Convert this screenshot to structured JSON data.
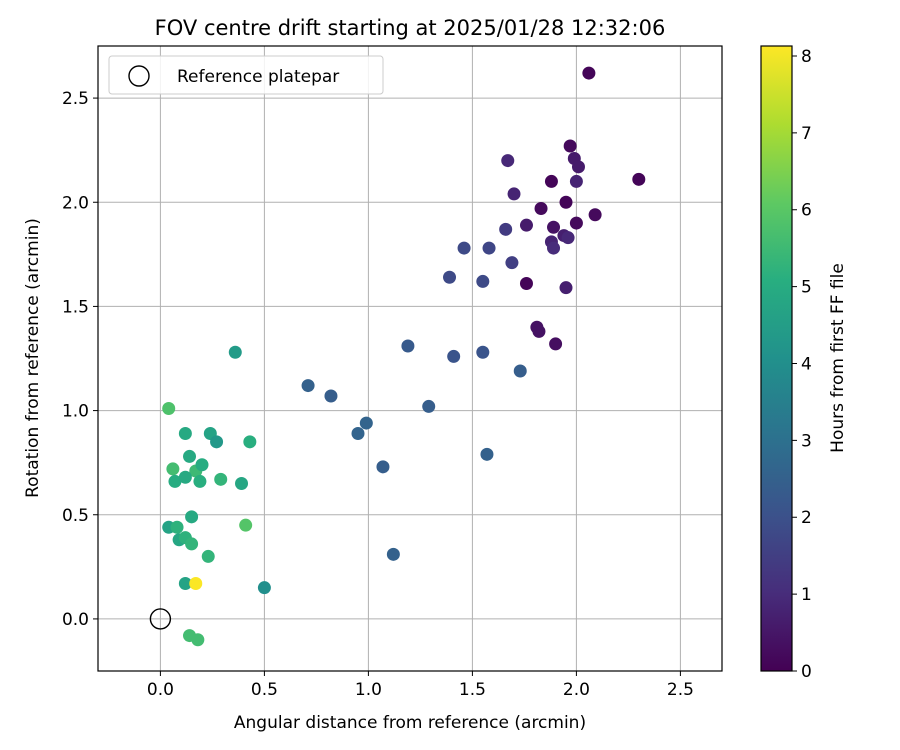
{
  "chart_data": {
    "type": "scatter",
    "title": "FOV centre drift starting at 2025/01/28 12:32:06",
    "xlabel": "Angular distance from reference (arcmin)",
    "ylabel": "Rotation from reference (arcmin)",
    "xlim": [
      -0.3,
      2.7
    ],
    "ylim": [
      -0.25,
      2.75
    ],
    "xticks": [
      0.0,
      0.5,
      1.0,
      1.5,
      2.0,
      2.5
    ],
    "yticks": [
      0.0,
      0.5,
      1.0,
      1.5,
      2.0,
      2.5
    ],
    "xtick_labels": [
      "0.0",
      "0.5",
      "1.0",
      "1.5",
      "2.0",
      "2.5"
    ],
    "ytick_labels": [
      "0.0",
      "0.5",
      "1.0",
      "1.5",
      "2.0",
      "2.5"
    ],
    "grid": true,
    "legend": {
      "position": "top-left",
      "entries": [
        "Reference platepar"
      ]
    },
    "reference_point": {
      "label": "Reference platepar",
      "x": 0.0,
      "y": 0.0
    },
    "colorbar": {
      "label": "Hours from first FF file",
      "range": [
        0,
        8.13
      ],
      "ticks": [
        0,
        1,
        2,
        3,
        4,
        5,
        6,
        7,
        8
      ],
      "tick_labels": [
        "0",
        "1",
        "2",
        "3",
        "4",
        "5",
        "6",
        "7",
        "8"
      ],
      "colormap": "viridis"
    },
    "series": [
      {
        "x": [
          2.06,
          2.3,
          1.97,
          1.99,
          2.01,
          2.0,
          1.88,
          1.7,
          1.67,
          1.95,
          2.09,
          1.83,
          2.0,
          1.89,
          1.76,
          1.66,
          1.94,
          1.96,
          1.88,
          1.89,
          1.58,
          1.46,
          1.69,
          1.39,
          1.55,
          1.76,
          1.95,
          1.81,
          1.82,
          1.9,
          1.19,
          1.41,
          1.55,
          1.73,
          0.71,
          0.82,
          0.99,
          0.95,
          1.29,
          1.57,
          1.07,
          1.12,
          0.36,
          0.04,
          0.12,
          0.24,
          0.27,
          0.43,
          0.14,
          0.06,
          0.17,
          0.2,
          0.07,
          0.12,
          0.19,
          0.29,
          0.39,
          0.15,
          0.41,
          0.04,
          0.08,
          0.09,
          0.12,
          0.15,
          0.23,
          0.12,
          0.17,
          0.5,
          0.14,
          0.18
        ],
        "y": [
          2.62,
          2.11,
          2.27,
          2.21,
          2.17,
          2.1,
          2.1,
          2.04,
          2.2,
          2.0,
          1.94,
          1.97,
          1.9,
          1.88,
          1.89,
          1.87,
          1.84,
          1.83,
          1.81,
          1.78,
          1.78,
          1.78,
          1.71,
          1.64,
          1.62,
          1.61,
          1.59,
          1.4,
          1.38,
          1.32,
          1.31,
          1.26,
          1.28,
          1.19,
          1.12,
          1.07,
          0.94,
          0.89,
          1.02,
          0.79,
          0.73,
          0.31,
          1.28,
          1.01,
          0.89,
          0.89,
          0.85,
          0.85,
          0.78,
          0.72,
          0.71,
          0.74,
          0.66,
          0.68,
          0.66,
          0.67,
          0.65,
          0.49,
          0.45,
          0.44,
          0.44,
          0.38,
          0.39,
          0.36,
          0.3,
          0.17,
          0.17,
          0.15,
          -0.08,
          -0.1
        ],
        "c": [
          0.1,
          0.1,
          0.2,
          0.6,
          0.6,
          0.8,
          0.1,
          0.8,
          0.9,
          0.1,
          0.2,
          0.2,
          0.2,
          0.4,
          0.6,
          1.4,
          0.7,
          0.9,
          0.8,
          1.0,
          1.7,
          1.8,
          1.5,
          1.8,
          1.8,
          0.1,
          0.7,
          0.4,
          0.4,
          0.3,
          2.3,
          2.1,
          2.1,
          2.4,
          2.5,
          2.4,
          2.6,
          2.6,
          2.4,
          2.5,
          2.4,
          2.5,
          4.4,
          5.8,
          4.9,
          4.7,
          4.3,
          5.1,
          4.9,
          5.6,
          5.5,
          5.0,
          5.0,
          4.9,
          5.1,
          5.3,
          4.8,
          4.9,
          5.9,
          4.7,
          5.2,
          4.8,
          5.2,
          5.3,
          5.3,
          4.7,
          8.1,
          4.0,
          5.6,
          5.6
        ]
      }
    ]
  }
}
